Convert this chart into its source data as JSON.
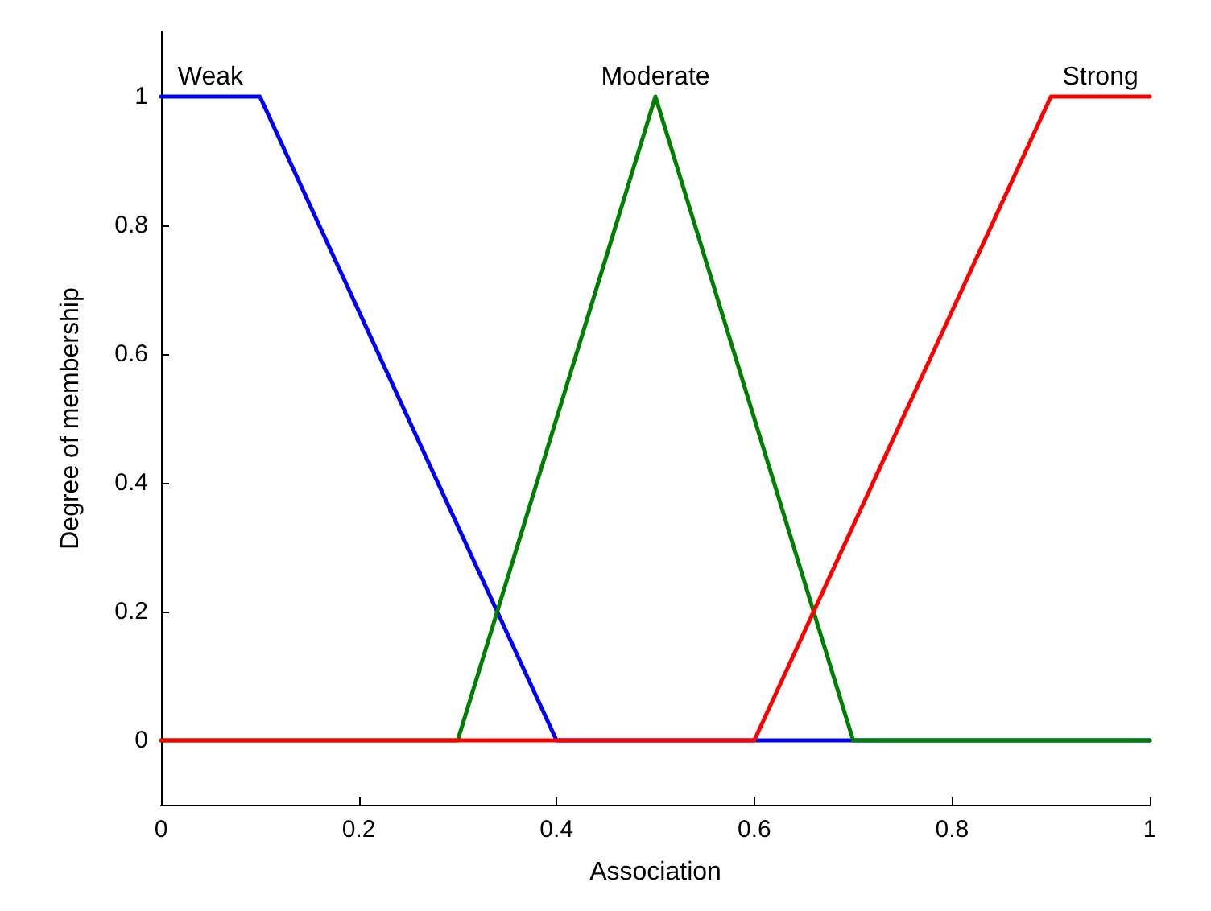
{
  "chart_data": {
    "type": "line",
    "xlabel": "Association",
    "ylabel": "Degree of membership",
    "xlim": [
      0,
      1
    ],
    "ylim": [
      -0.1,
      1.1
    ],
    "xticks": [
      0,
      0.2,
      0.4,
      0.6,
      0.8,
      1
    ],
    "yticks": [
      0,
      0.2,
      0.4,
      0.6,
      0.8,
      1
    ],
    "grid": false,
    "legend": false,
    "marker": "none",
    "line_style": "solid",
    "series": [
      {
        "name": "Weak",
        "color": "#0000ff",
        "x": [
          0,
          0.1,
          0.4,
          1
        ],
        "values": [
          1,
          1,
          0,
          0
        ]
      },
      {
        "name": "Moderate",
        "color": "#008000",
        "x": [
          0,
          0.3,
          0.5,
          0.7,
          1
        ],
        "values": [
          0,
          0,
          1,
          0,
          0
        ]
      },
      {
        "name": "Strong",
        "color": "#ff0000",
        "x": [
          0,
          0.6,
          0.9,
          1
        ],
        "values": [
          0,
          0,
          1,
          1
        ]
      }
    ]
  }
}
